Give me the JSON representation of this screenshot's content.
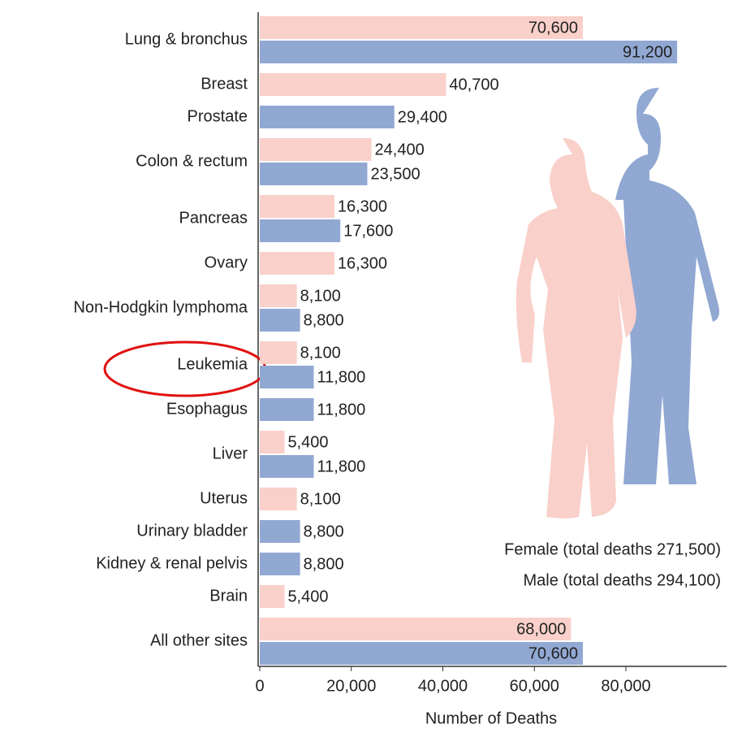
{
  "chart_data": {
    "type": "grouped-hbar",
    "categories": [
      "Lung & bronchus",
      "Breast",
      "Prostate",
      "Colon & rectum",
      "Pancreas",
      "Ovary",
      "Non-Hodgkin lymphoma",
      "Leukemia",
      "Esophagus",
      "Liver",
      "Uterus",
      "Urinary bladder",
      "Kidney & renal pelvis",
      "Brain",
      "All other sites"
    ],
    "series": [
      {
        "name": "Female (total deaths 271,500)",
        "color": "#f9d0ca",
        "values": [
          70600,
          40700,
          null,
          24400,
          16300,
          16300,
          8100,
          8100,
          null,
          5400,
          8100,
          null,
          null,
          5400,
          68000
        ],
        "value_labels": [
          "70,600",
          "40,700",
          null,
          "24,400",
          "16,300",
          "16,300",
          "8,100",
          "8,100",
          null,
          "5,400",
          "8,100",
          null,
          null,
          "5,400",
          "68,000"
        ]
      },
      {
        "name": "Male (total deaths 294,100)",
        "color": "#91a8d3",
        "values": [
          91200,
          null,
          29400,
          23500,
          17600,
          null,
          8800,
          11800,
          11800,
          11800,
          null,
          8800,
          8800,
          null,
          70600
        ],
        "value_labels": [
          "91,200",
          null,
          "29,400",
          "23,500",
          "17,600",
          null,
          "8,800",
          "11,800",
          "11,800",
          "11,800",
          null,
          "8,800",
          "8,800",
          null,
          "70,600"
        ]
      }
    ],
    "xlabel": "Number of Deaths",
    "xlim": [
      0,
      102000
    ],
    "xticks": [
      0,
      {
        "value": 20000,
        "label": "20,000"
      },
      {
        "value": 40000,
        "label": "40,000"
      },
      {
        "value": 60000,
        "label": "60,000"
      },
      {
        "value": 80000,
        "label": "80,000"
      }
    ]
  }
}
